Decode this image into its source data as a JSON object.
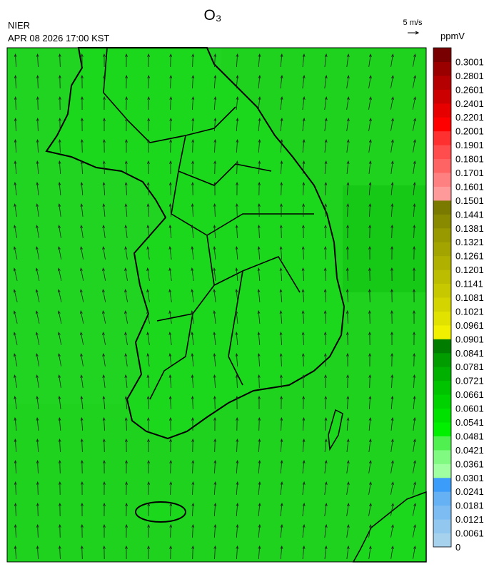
{
  "header": {
    "title": "O₃",
    "agency": "NIER",
    "timestamp": "APR 08 2026 17:00 KST",
    "vector_scale": "5 m/s"
  },
  "colorbar": {
    "unit": "ppmV",
    "labels": [
      "0",
      "0.0061",
      "0.0121",
      "0.0181",
      "0.0241",
      "0.0301",
      "0.0361",
      "0.0421",
      "0.0481",
      "0.0541",
      "0.0601",
      "0.0661",
      "0.0721",
      "0.0781",
      "0.0841",
      "0.0901",
      "0.0961",
      "0.1021",
      "0.1081",
      "0.1141",
      "0.1201",
      "0.1261",
      "0.1321",
      "0.1381",
      "0.1441",
      "0.1501",
      "0.1601",
      "0.1701",
      "0.1801",
      "0.1901",
      "0.2001",
      "0.2201",
      "0.2401",
      "0.2601",
      "0.2801",
      "0.3001"
    ],
    "colors": [
      "#a6d2ee",
      "#92c8f0",
      "#7cbcf2",
      "#66b0f4",
      "#3c9cfa",
      "#a0ffa0",
      "#80fa80",
      "#50f050",
      "#00f000",
      "#00e100",
      "#00d200",
      "#00c300",
      "#00b000",
      "#009c00",
      "#007c00",
      "#f0f000",
      "#e2e200",
      "#d4d400",
      "#c8c800",
      "#bcbc00",
      "#b0b000",
      "#a4a400",
      "#989800",
      "#8a8a00",
      "#7a7a00",
      "#ff9a9a",
      "#ff8080",
      "#ff6464",
      "#ff4c4c",
      "#ff3030",
      "#ff0000",
      "#e60000",
      "#cc0000",
      "#b40000",
      "#9a0000",
      "#780000"
    ]
  }
}
